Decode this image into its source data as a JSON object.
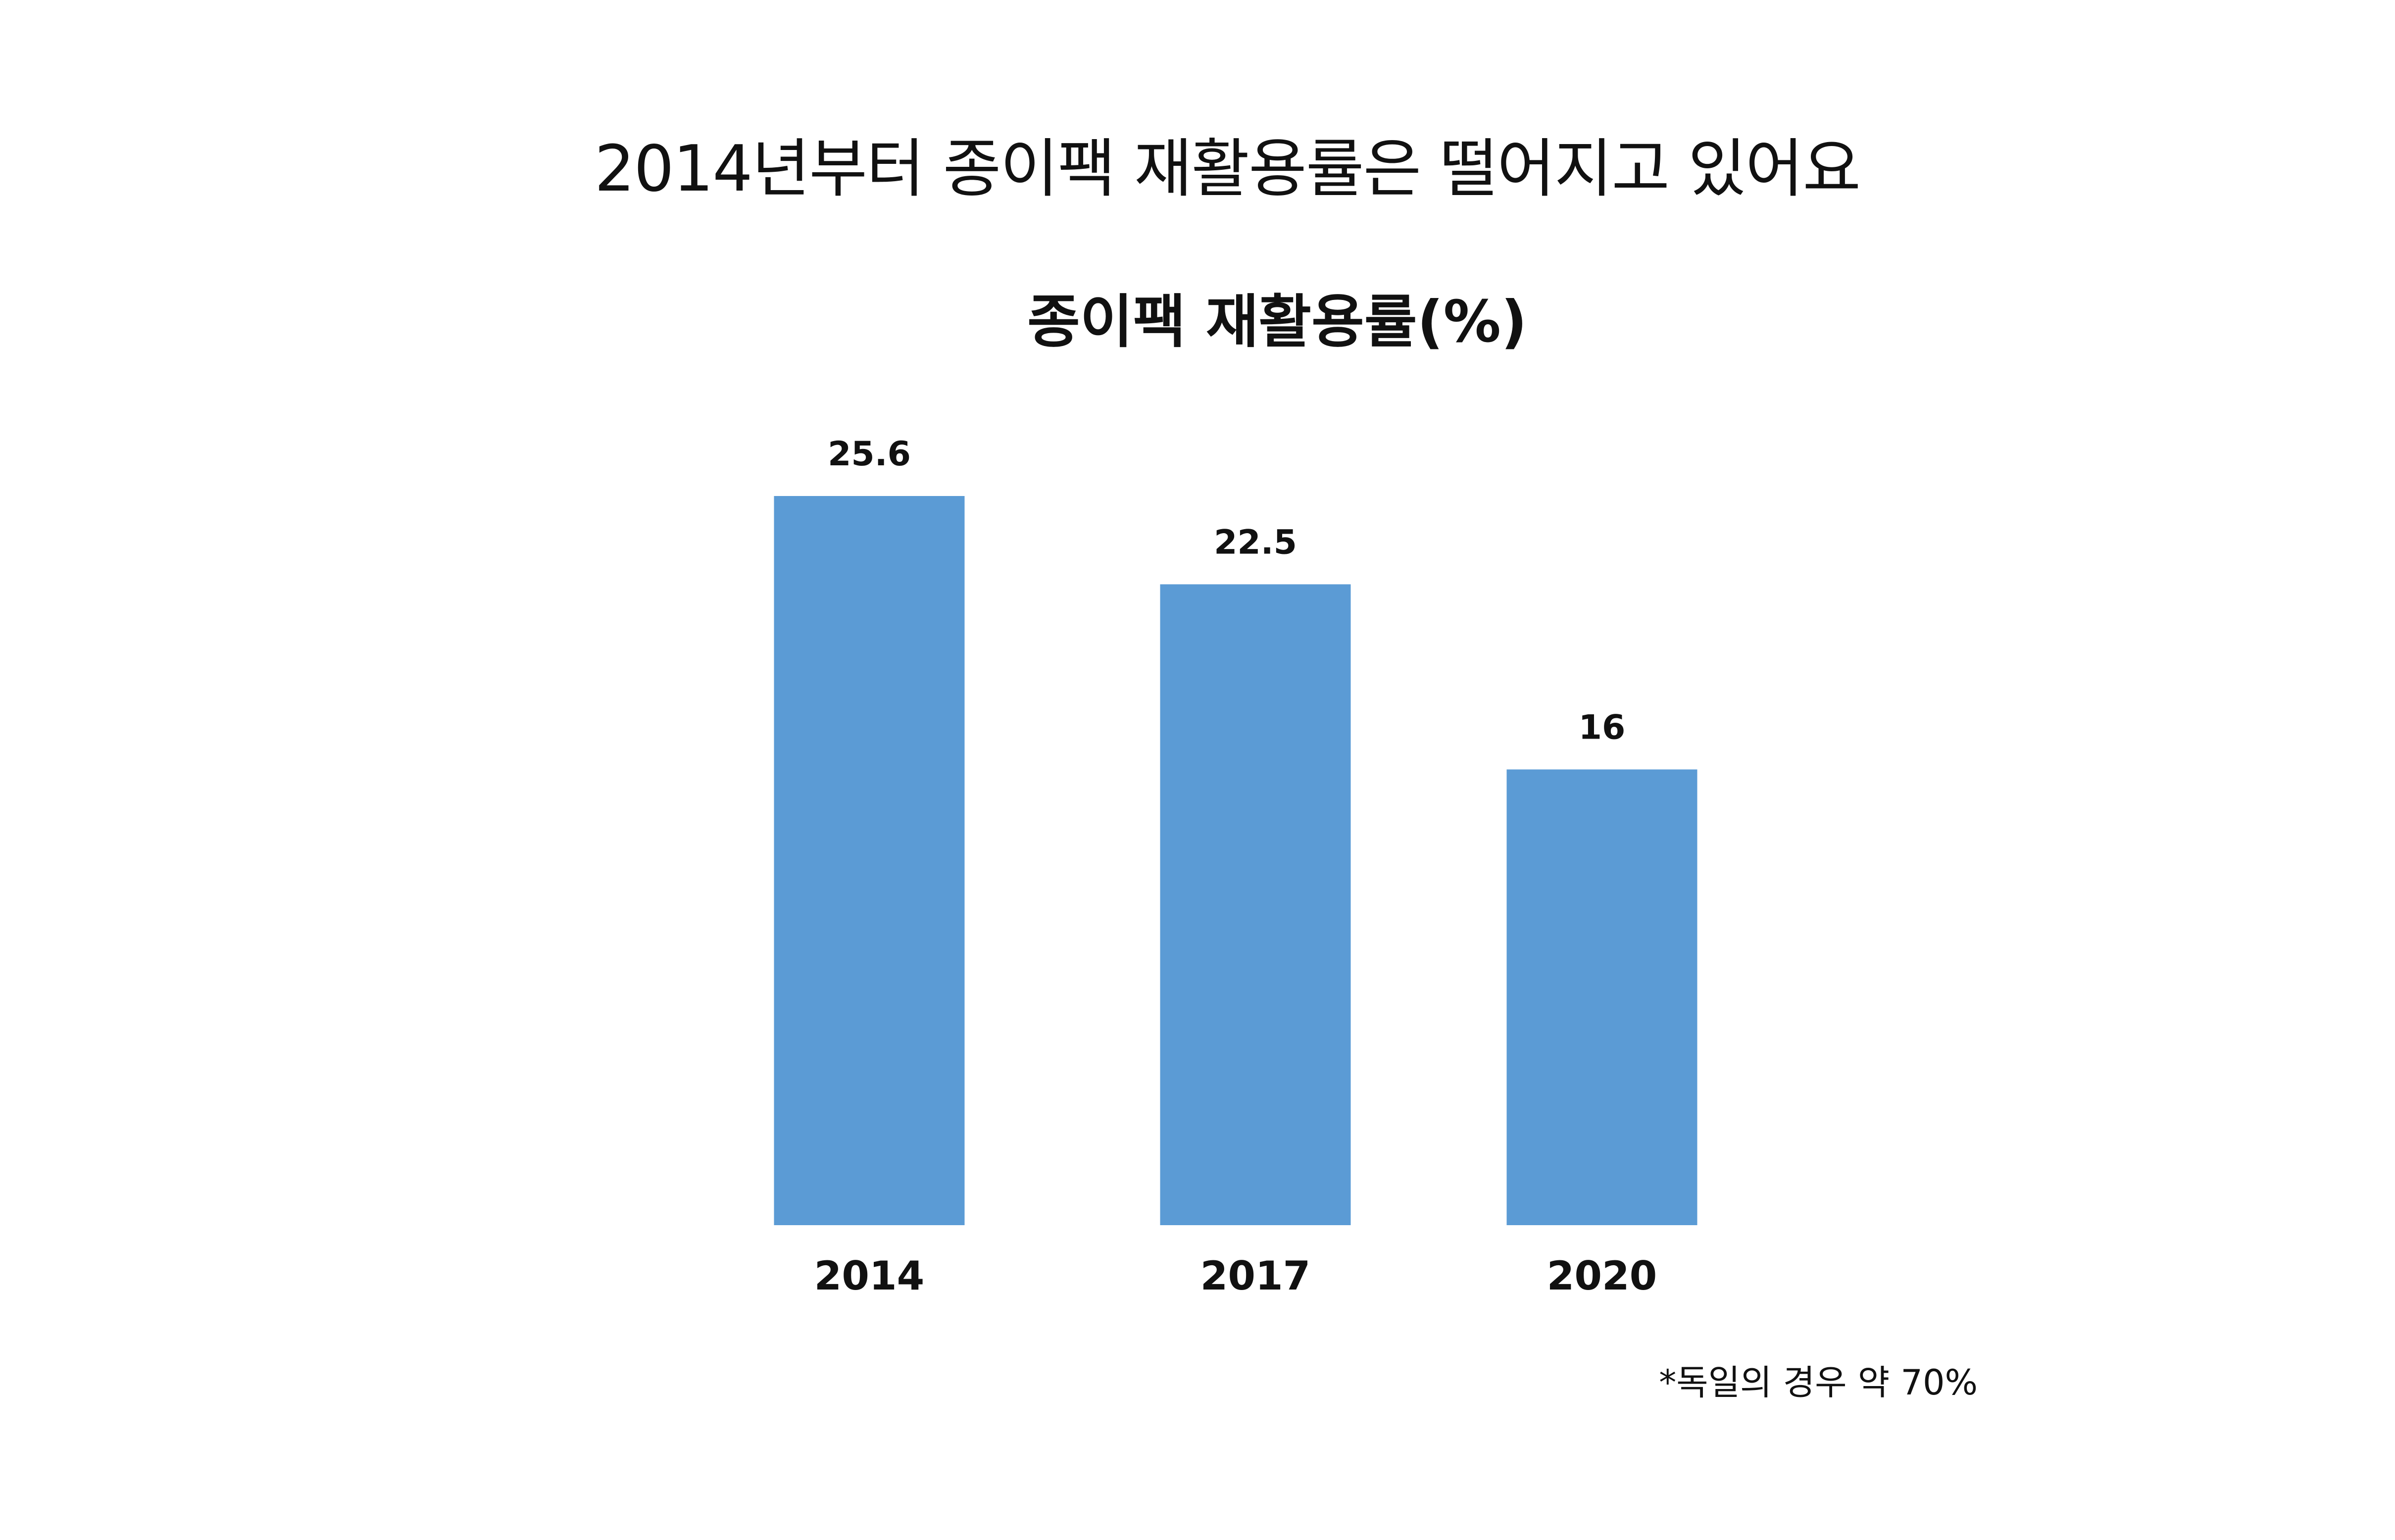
{
  "headline": "2014년부터 종이팩 재활용률은 떨어지고 있어요",
  "footnote": "*독일의 경우 약 70%",
  "colors": {
    "bar": "#5B9BD5",
    "text": "#111111",
    "background": "#ffffff"
  },
  "chart_data": {
    "type": "bar",
    "title": "종이팩 재활용률(%)",
    "xlabel": "",
    "ylabel": "",
    "categories": [
      "2014",
      "2017",
      "2020"
    ],
    "values": [
      25.6,
      22.5,
      16
    ],
    "data_labels": [
      "25.6",
      "22.5",
      "16"
    ],
    "ylim": [
      0,
      25.6
    ],
    "grid": false,
    "legend": "none"
  }
}
